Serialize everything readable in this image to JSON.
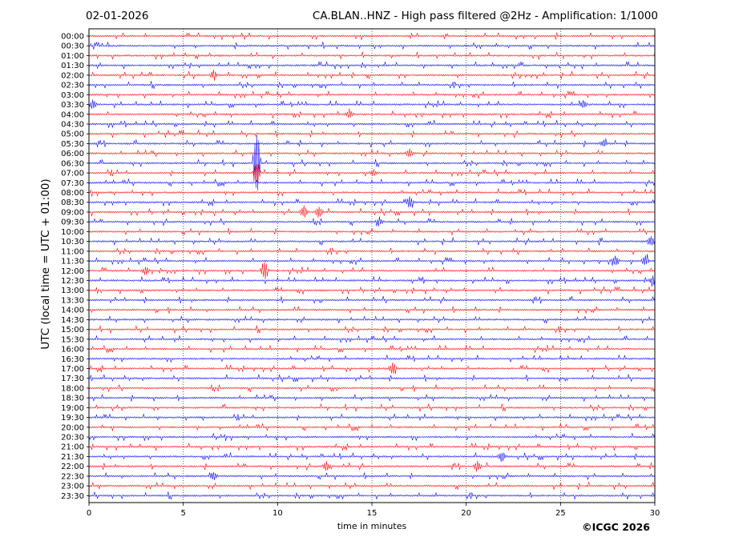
{
  "header": {
    "date": "02-01-2026",
    "title": "CA.BLAN..HNZ - High pass filtered @2Hz - Amplification: 1/1000"
  },
  "footer": {
    "copyright": "©ICGC 2026"
  },
  "colors": {
    "even_trace": "#ff0000",
    "odd_trace": "#0000ff",
    "grid": "#000000",
    "axis": "#000000"
  },
  "chart_data": {
    "type": "line",
    "title": "CA.BLAN..HNZ - High pass filtered @2Hz - Amplification: 1/1000",
    "xlabel": "time in minutes",
    "ylabel": "UTC (local time = UTC + 01:00)",
    "xlim": [
      0,
      30
    ],
    "xticks": [
      0,
      5,
      10,
      15,
      20,
      25,
      30
    ],
    "grid": "vertical dotted lines at 5-minute intervals",
    "yticks": [
      "00:00",
      "00:30",
      "01:00",
      "01:30",
      "02:00",
      "02:30",
      "03:00",
      "03:30",
      "04:00",
      "04:30",
      "05:00",
      "05:30",
      "06:00",
      "06:30",
      "07:00",
      "07:30",
      "08:00",
      "08:30",
      "09:00",
      "09:30",
      "10:00",
      "10:30",
      "11:00",
      "11:30",
      "12:00",
      "12:30",
      "13:00",
      "13:30",
      "14:00",
      "14:30",
      "15:00",
      "15:30",
      "16:00",
      "16:30",
      "17:00",
      "17:30",
      "18:00",
      "18:30",
      "19:00",
      "19:30",
      "20:00",
      "20:30",
      "21:00",
      "21:30",
      "22:00",
      "22:30",
      "23:00",
      "23:30"
    ],
    "trace_colors": "alternating red (full hours) and blue (half hours)",
    "events": [
      {
        "row": "02:00",
        "minute": 6.6,
        "amplitude": 0.5
      },
      {
        "row": "03:30",
        "minute": 0.2,
        "amplitude": 0.6
      },
      {
        "row": "03:30",
        "minute": 26.2,
        "amplitude": 0.5
      },
      {
        "row": "04:00",
        "minute": 13.8,
        "amplitude": 0.4
      },
      {
        "row": "05:30",
        "minute": 27.3,
        "amplitude": 0.4
      },
      {
        "row": "06:00",
        "minute": 17.0,
        "amplitude": 0.6
      },
      {
        "row": "06:30",
        "minute": 8.9,
        "amplitude": 4.5
      },
      {
        "row": "07:00",
        "minute": 8.9,
        "amplitude": 1.5
      },
      {
        "row": "07:00",
        "minute": 15.1,
        "amplitude": 0.3
      },
      {
        "row": "08:30",
        "minute": 17.0,
        "amplitude": 0.6
      },
      {
        "row": "09:00",
        "minute": 11.4,
        "amplitude": 0.8
      },
      {
        "row": "09:00",
        "minute": 12.2,
        "amplitude": 0.7
      },
      {
        "row": "09:30",
        "minute": 15.4,
        "amplitude": 0.5
      },
      {
        "row": "10:30",
        "minute": 29.8,
        "amplitude": 0.6
      },
      {
        "row": "11:30",
        "minute": 27.9,
        "amplitude": 0.7
      },
      {
        "row": "11:30",
        "minute": 29.5,
        "amplitude": 0.6
      },
      {
        "row": "12:00",
        "minute": 3.0,
        "amplitude": 0.5
      },
      {
        "row": "12:00",
        "minute": 9.3,
        "amplitude": 1.2
      },
      {
        "row": "12:30",
        "minute": 29.9,
        "amplitude": 0.5
      },
      {
        "row": "17:00",
        "minute": 16.1,
        "amplitude": 0.7
      },
      {
        "row": "21:30",
        "minute": 21.9,
        "amplitude": 0.6
      },
      {
        "row": "22:00",
        "minute": 12.6,
        "amplitude": 0.5
      },
      {
        "row": "22:00",
        "minute": 20.6,
        "amplitude": 0.6
      },
      {
        "row": "22:30",
        "minute": 6.6,
        "amplitude": 0.5
      }
    ]
  }
}
